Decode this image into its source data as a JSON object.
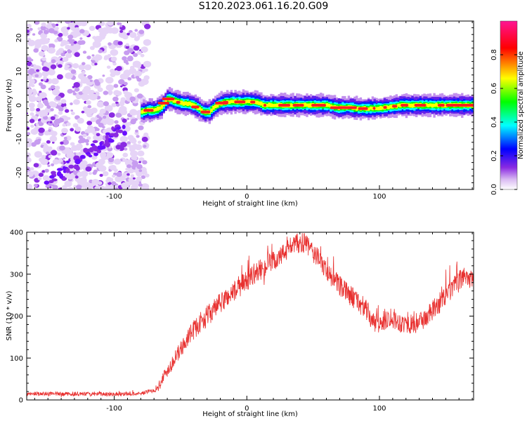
{
  "page": {
    "title": "S120.2023.061.16.20.G09"
  },
  "chart_data": [
    {
      "type": "heatmap",
      "xlabel": "Height of straight line (km)",
      "ylabel": "Frequency (Hz)",
      "xlim": [
        -166,
        171
      ],
      "ylim": [
        -25,
        25
      ],
      "x_ticks": [
        -100,
        0,
        100
      ],
      "y_ticks": [
        -20,
        -10,
        0,
        10,
        20
      ],
      "grid": false,
      "noise_region_x": [
        -166,
        -75
      ],
      "ridge": {
        "x": [
          -80,
          -76,
          -70,
          -65,
          -60,
          -57,
          -53,
          -49,
          -45,
          -41,
          -37,
          -33,
          -29,
          -25,
          -21,
          -17,
          -13,
          -9,
          -5,
          -1,
          3,
          8,
          12,
          20,
          30,
          40,
          50,
          60,
          68,
          76,
          84,
          92,
          100,
          108,
          116,
          124,
          132,
          140,
          148,
          156,
          164,
          171
        ],
        "y": [
          -2,
          -1.5,
          -1.5,
          -0.5,
          2,
          1.5,
          1,
          0.5,
          0.5,
          0,
          -1,
          -2,
          -2,
          -0.5,
          0.5,
          0.8,
          1,
          1,
          1,
          1,
          1,
          0.8,
          0,
          0,
          0,
          0,
          0,
          0,
          -0.8,
          -0.6,
          -1,
          -1,
          -0.8,
          -0.5,
          0,
          0,
          0,
          0,
          0,
          0,
          0,
          0
        ]
      }
    },
    {
      "type": "line",
      "xlabel": "Height of straight line (km)",
      "ylabel": "SNR (10 * v/v)",
      "xlim": [
        -166,
        171
      ],
      "ylim": [
        0,
        400
      ],
      "x_ticks": [
        -100,
        0,
        100
      ],
      "y_ticks": [
        0,
        100,
        200,
        300,
        400
      ],
      "series_color": "#e8302f",
      "trend": {
        "x": [
          -166,
          -140,
          -110,
          -80,
          -68,
          -62,
          -55,
          -48,
          -42,
          -35,
          -25,
          -15,
          -5,
          5,
          15,
          25,
          32,
          40,
          45,
          52,
          60,
          70,
          80,
          90,
          95,
          100,
          108,
          115,
          125,
          135,
          145,
          155,
          165,
          171
        ],
        "y": [
          15,
          14,
          14,
          15,
          25,
          60,
          95,
          130,
          160,
          185,
          215,
          245,
          270,
          300,
          320,
          340,
          365,
          375,
          370,
          345,
          310,
          270,
          245,
          215,
          185,
          180,
          200,
          185,
          180,
          195,
          230,
          265,
          300,
          280
        ]
      },
      "noise_amplitude": 18
    }
  ],
  "colorbar": {
    "label": "Normalized spectral amplitude",
    "ticks": [
      "0.0",
      "0.2",
      "0.4",
      "0.6",
      "0.8"
    ],
    "range": [
      0,
      1
    ],
    "colors": [
      "#ffffff",
      "#d9b9f2",
      "#8a2be2",
      "#0000ff",
      "#00ffff",
      "#00ff00",
      "#ffff00",
      "#ff0000",
      "#ff1493"
    ]
  }
}
